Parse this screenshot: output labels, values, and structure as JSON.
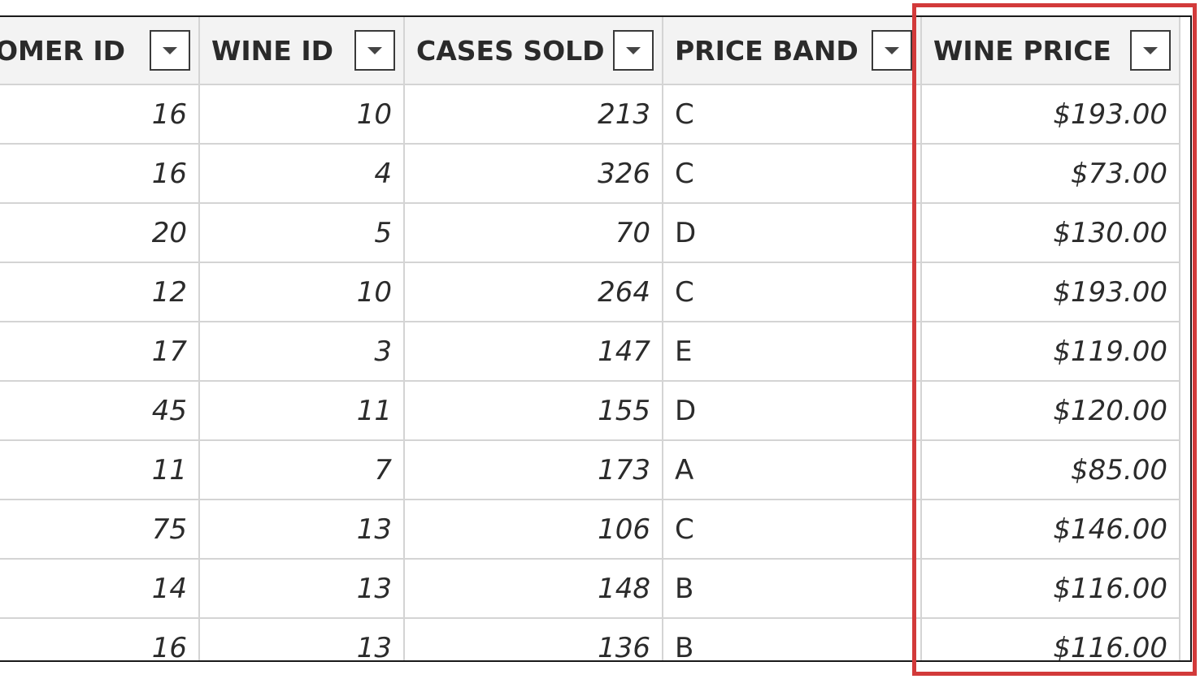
{
  "table": {
    "columns": [
      {
        "label": "OMER ID",
        "align": "right"
      },
      {
        "label": "WINE ID",
        "align": "right"
      },
      {
        "label": "CASES SOLD",
        "align": "right"
      },
      {
        "label": "PRICE BAND",
        "align": "left"
      },
      {
        "label": "WINE PRICE",
        "align": "right"
      }
    ],
    "rows": [
      [
        "16",
        "10",
        "213",
        "C",
        "$193.00"
      ],
      [
        "16",
        "4",
        "326",
        "C",
        "$73.00"
      ],
      [
        "20",
        "5",
        "70",
        "D",
        "$130.00"
      ],
      [
        "12",
        "10",
        "264",
        "C",
        "$193.00"
      ],
      [
        "17",
        "3",
        "147",
        "E",
        "$119.00"
      ],
      [
        "45",
        "11",
        "155",
        "D",
        "$120.00"
      ],
      [
        "11",
        "7",
        "173",
        "A",
        "$85.00"
      ],
      [
        "75",
        "13",
        "106",
        "C",
        "$146.00"
      ],
      [
        "14",
        "13",
        "148",
        "B",
        "$116.00"
      ],
      [
        "16",
        "13",
        "136",
        "B",
        "$116.00"
      ]
    ]
  },
  "icons": {
    "column_filter": "chevron-down-icon"
  },
  "colors": {
    "highlight": "#d23a3a",
    "header_bg": "#f3f3f3",
    "grid_line": "#d4d4d4"
  }
}
